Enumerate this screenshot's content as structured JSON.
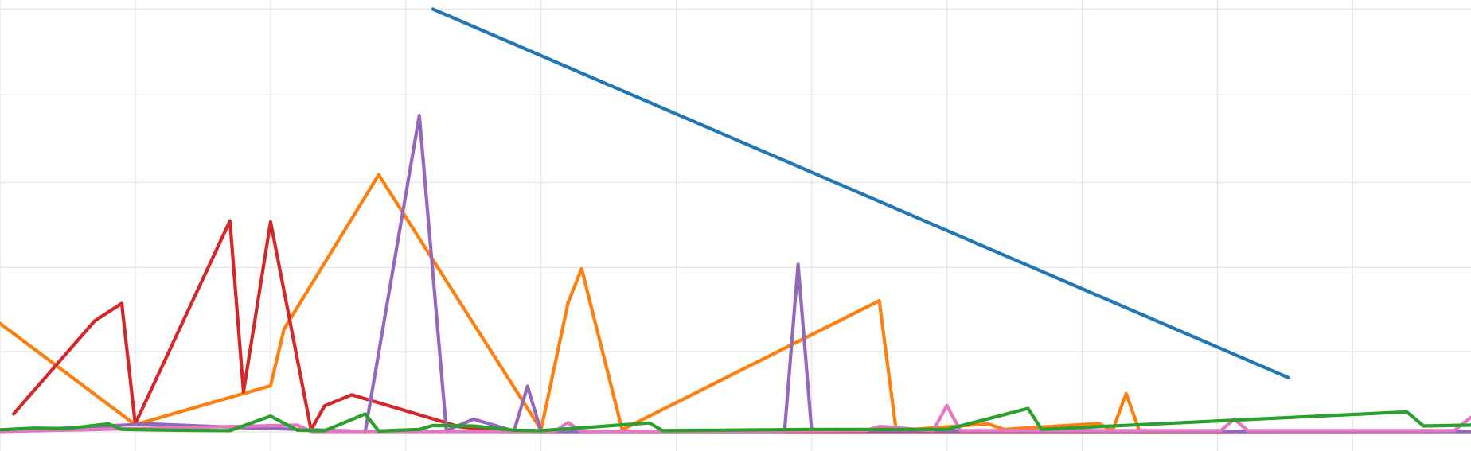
{
  "chart_data": {
    "type": "line",
    "title": "",
    "xlabel": "",
    "ylabel": "",
    "grid": true,
    "legend": "none",
    "xlim": [
      0,
      21.75
    ],
    "ylim": [
      0,
      100
    ],
    "xticks": [
      0,
      2,
      4,
      6,
      8,
      10,
      12,
      14,
      16,
      18,
      20
    ],
    "yticks": [
      0,
      18.8,
      38.5,
      58.4,
      78.9,
      99
    ],
    "series": [
      {
        "color": "#1f77b4",
        "points": [
          [
            6.4,
            99
          ],
          [
            19.05,
            12.7
          ]
        ]
      },
      {
        "color": "#ff7f0e",
        "points": [
          [
            0,
            25.4
          ],
          [
            2,
            1.7
          ],
          [
            4,
            10.8
          ],
          [
            4.2,
            24.1
          ],
          [
            5.6,
            60.2
          ],
          [
            8,
            0.5
          ],
          [
            8.4,
            30.3
          ],
          [
            8.6,
            38.2
          ],
          [
            9.2,
            0.5
          ],
          [
            13,
            30.7
          ],
          [
            13.25,
            0.3
          ],
          [
            14.6,
            1.9
          ],
          [
            14.85,
            0.6
          ],
          [
            16.25,
            2.0
          ],
          [
            16.45,
            0.3
          ],
          [
            16.65,
            9.0
          ],
          [
            16.85,
            0.1
          ],
          [
            21.25,
            0.1
          ]
        ]
      },
      {
        "color": "#d62728",
        "points": [
          [
            0.2,
            4.2
          ],
          [
            1.4,
            26.0
          ],
          [
            1.8,
            30.1
          ],
          [
            2,
            1.9
          ],
          [
            3.4,
            49.4
          ],
          [
            3.6,
            9.4
          ],
          [
            4,
            49.2
          ],
          [
            4.6,
            0.5
          ],
          [
            4.8,
            6.1
          ],
          [
            5.2,
            8.7
          ],
          [
            6.8,
            1.2
          ],
          [
            7.4,
            0.1
          ],
          [
            21.75,
            0.1
          ]
        ]
      },
      {
        "color": "#9467bd",
        "points": [
          [
            0,
            0.1
          ],
          [
            2.2,
            1.9
          ],
          [
            3.6,
            1.0
          ],
          [
            5.4,
            0.1
          ],
          [
            6.2,
            74.1
          ],
          [
            6.6,
            0.3
          ],
          [
            7,
            3.0
          ],
          [
            7.6,
            0.2
          ],
          [
            7.8,
            10.7
          ],
          [
            8,
            0.1
          ],
          [
            11.6,
            0.1
          ],
          [
            11.8,
            39.2
          ],
          [
            12,
            0.3
          ],
          [
            21.75,
            0.1
          ]
        ]
      },
      {
        "color": "#e377c2",
        "points": [
          [
            0,
            0.1
          ],
          [
            4.4,
            1.6
          ],
          [
            4.6,
            0.1
          ],
          [
            8.2,
            0.1
          ],
          [
            8.4,
            2.2
          ],
          [
            8.6,
            0.1
          ],
          [
            12.8,
            0.3
          ],
          [
            13,
            1.3
          ],
          [
            13.8,
            0.3
          ],
          [
            14,
            6.2
          ],
          [
            14.2,
            0.3
          ],
          [
            18.05,
            0.3
          ],
          [
            18.25,
            3.0
          ],
          [
            18.45,
            0.3
          ],
          [
            21.5,
            0.3
          ],
          [
            21.75,
            3.4
          ]
        ]
      },
      {
        "color": "#2ca02c",
        "points": [
          [
            0,
            0.5
          ],
          [
            0.5,
            0.9
          ],
          [
            1,
            0.8
          ],
          [
            1.6,
            1.9
          ],
          [
            1.8,
            0.6
          ],
          [
            2.6,
            0.4
          ],
          [
            3.4,
            0.3
          ],
          [
            4,
            3.7
          ],
          [
            4.4,
            0.4
          ],
          [
            4.8,
            0.3
          ],
          [
            5.4,
            4.2
          ],
          [
            5.6,
            0.2
          ],
          [
            6.2,
            0.6
          ],
          [
            6.4,
            1.5
          ],
          [
            7,
            1.4
          ],
          [
            7.6,
            0.4
          ],
          [
            8,
            0.3
          ],
          [
            9.6,
            2.1
          ],
          [
            9.8,
            0.3
          ],
          [
            12,
            0.6
          ],
          [
            14,
            0.6
          ],
          [
            15.2,
            5.5
          ],
          [
            15.4,
            0.6
          ],
          [
            20.8,
            4.7
          ],
          [
            21.05,
            1.4
          ],
          [
            21.75,
            1.6
          ]
        ]
      }
    ]
  }
}
